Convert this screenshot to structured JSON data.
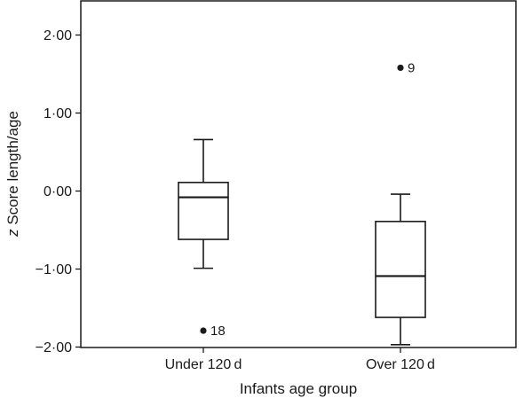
{
  "chart_data": {
    "type": "boxplot",
    "title": "",
    "xlabel": "Infants age group",
    "ylabel_italic": "z",
    "ylabel_rest": " Score length/age",
    "ylim": [
      -2.0,
      2.4
    ],
    "yticks": [
      2.0,
      1.0,
      0.0,
      -1.0,
      -2.0
    ],
    "ytick_labels": [
      "2·00",
      "1·00",
      "0·00",
      "−1·00",
      "−2·00"
    ],
    "grid": false,
    "legend": "none",
    "categories": [
      "Under 120 d",
      "Over 120 d"
    ],
    "boxes": [
      {
        "category": "Under 120 d",
        "whisker_low": -0.99,
        "q1": -0.62,
        "median": -0.08,
        "q3": 0.11,
        "whisker_high": 0.66,
        "outliers": [
          {
            "value": -1.79,
            "label": "18"
          }
        ]
      },
      {
        "category": "Over 120 d",
        "whisker_low": -1.97,
        "q1": -1.62,
        "median": -1.09,
        "q3": -0.39,
        "whisker_high": -0.04,
        "outliers": [
          {
            "value": 1.58,
            "label": "9"
          }
        ]
      }
    ]
  }
}
